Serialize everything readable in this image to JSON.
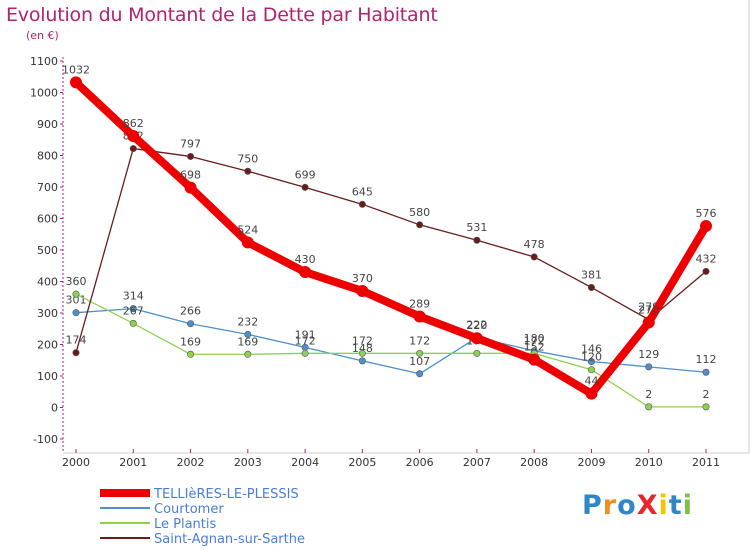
{
  "title": "Evolution du Montant de la Dette par Habitant",
  "subtitle": "(en €)",
  "logo": {
    "text": "ProXiti",
    "letter_colors": [
      "#2f86c8",
      "#f28c1e",
      "#2f86c8",
      "#e6262a",
      "#f5c400",
      "#2f86c8",
      "#7cc242"
    ]
  },
  "chart_data": {
    "type": "line",
    "x": [
      "2000",
      "2001",
      "2002",
      "2003",
      "2004",
      "2005",
      "2006",
      "2007",
      "2008",
      "2009",
      "2010",
      "2011"
    ],
    "ylim": [
      -100,
      1100
    ],
    "yticks": [
      "-100",
      "0",
      "100",
      "200",
      "300",
      "400",
      "500",
      "600",
      "700",
      "800",
      "900",
      "1000",
      "1100"
    ],
    "grid": false,
    "legend_position": "bottom-left",
    "series": [
      {
        "name": "TELLIèRES-LE-PLESSIS",
        "color": "#ee0000",
        "emphasis": true,
        "values": [
          1032,
          862,
          698,
          524,
          430,
          370,
          289,
          220,
          152,
          44,
          270,
          576
        ],
        "labels": [
          "1032",
          "862",
          "698",
          "524",
          "430",
          "370",
          "289",
          "220",
          "152",
          "44",
          "270",
          "576"
        ]
      },
      {
        "name": "Courtomer",
        "color": "#4f8fcc",
        "emphasis": false,
        "values": [
          301,
          314,
          266,
          232,
          191,
          148,
          107,
          222,
          180,
          146,
          129,
          112
        ],
        "labels": [
          "301",
          "314",
          "266",
          "232",
          "191",
          "148",
          "107",
          "222",
          "180",
          "146",
          "129",
          "112"
        ]
      },
      {
        "name": "Le Plantis",
        "color": "#8dd24f",
        "emphasis": false,
        "values": [
          360,
          267,
          169,
          169,
          172,
          172,
          172,
          172,
          172,
          120,
          2,
          2
        ],
        "labels": [
          "360",
          "267",
          "169",
          "169",
          "172",
          "172",
          "172",
          "172",
          "172",
          "120",
          "2",
          "2"
        ]
      },
      {
        "name": "Saint-Agnan-sur-Sarthe",
        "color": "#6a1c1c",
        "emphasis": false,
        "values": [
          174,
          822,
          797,
          750,
          699,
          645,
          580,
          531,
          478,
          381,
          279,
          432
        ],
        "labels": [
          "174",
          "822",
          "797",
          "750",
          "699",
          "645",
          "580",
          "531",
          "478",
          "381",
          "279",
          "432"
        ]
      }
    ]
  }
}
